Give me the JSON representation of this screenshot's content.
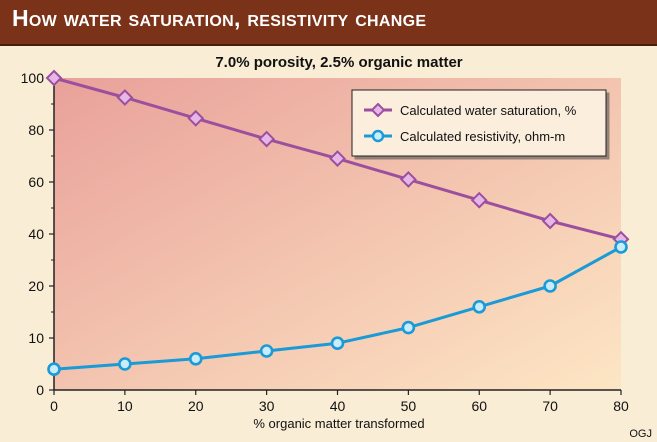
{
  "header": {
    "title": "How water saturation, resistivity change"
  },
  "credit": "OGJ",
  "colors": {
    "header_bg": "#7a3218",
    "page_bg": "#f9edd6",
    "plot_bg_top_left": "#e9a19a",
    "plot_bg_bottom_right": "#fde6c4",
    "water_saturation": "#9b4f9e",
    "resistivity": "#1a9ad6"
  },
  "chart_data": {
    "type": "line",
    "title": "7.0% porosity, 2.5% organic matter",
    "xlabel": "% organic matter transformed",
    "ylabel": "",
    "x": [
      0,
      10,
      20,
      30,
      40,
      50,
      60,
      70,
      80
    ],
    "xlim": [
      0,
      80
    ],
    "x_ticks": [
      "0",
      "10",
      "20",
      "30",
      "40",
      "50",
      "60",
      "70",
      "80"
    ],
    "y_ticks": [
      "0",
      "10",
      "20",
      "40",
      "60",
      "80",
      "100"
    ],
    "y_tick_values": [
      0,
      10,
      20,
      40,
      60,
      80,
      100
    ],
    "y_axis_note": "nonlinear axis: equal spacing between printed ticks",
    "grid": false,
    "legend_position": "top-right",
    "series": [
      {
        "name": "Calculated water saturation, %",
        "marker": "diamond",
        "values": [
          100,
          92.5,
          84.5,
          76.5,
          69,
          61,
          53,
          45,
          38
        ]
      },
      {
        "name": "Calculated resistivity, ohm-m",
        "marker": "circle",
        "values": [
          4,
          5,
          6,
          7.5,
          9,
          12,
          16,
          20,
          35
        ]
      }
    ]
  }
}
